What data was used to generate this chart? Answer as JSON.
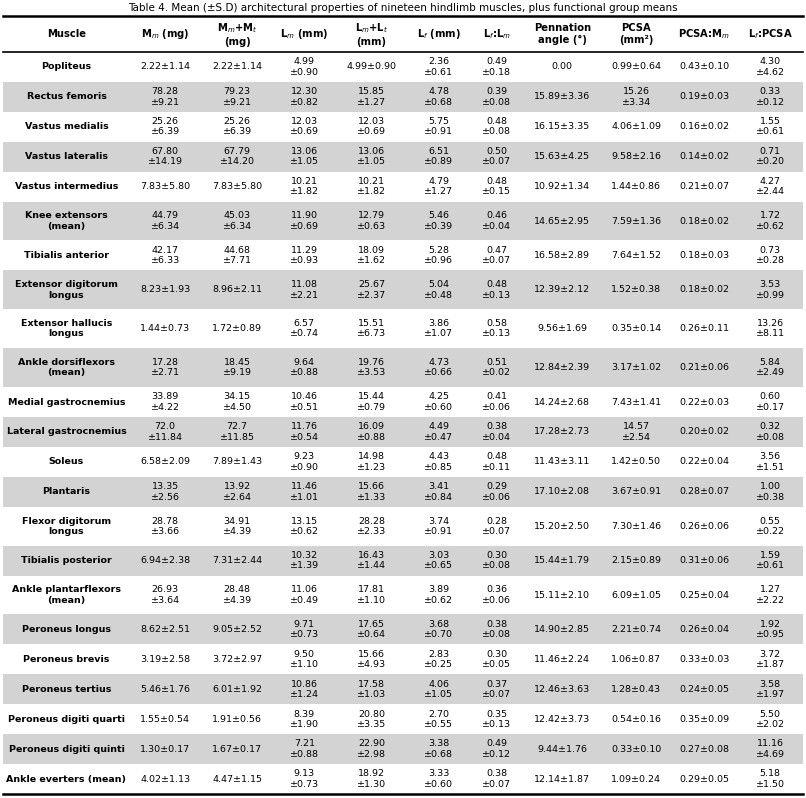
{
  "title": "Table 4. Mean (±S.D) architectural properties of nineteen hindlimb muscles, plus functional group means",
  "rows": [
    {
      "muscle": "Popliteus",
      "shaded": false,
      "group_mean": false,
      "cols": [
        "2.22±1.14",
        "2.22±1.14",
        "4.99\n±0.90",
        "4.99±0.90",
        "2.36\n±0.61",
        "0.49\n±0.18",
        "0.00",
        "0.99±0.64",
        "0.43±0.10",
        "4.30\n±4.62"
      ]
    },
    {
      "muscle": "Rectus femoris",
      "shaded": true,
      "group_mean": false,
      "cols": [
        "78.28\n±9.21",
        "79.23\n±9.21",
        "12.30\n±0.82",
        "15.85\n±1.27",
        "4.78\n±0.68",
        "0.39\n±0.08",
        "15.89±3.36",
        "15.26\n±3.34",
        "0.19±0.03",
        "0.33\n±0.12"
      ]
    },
    {
      "muscle": "Vastus medialis",
      "shaded": false,
      "group_mean": false,
      "cols": [
        "25.26\n±6.39",
        "25.26\n±6.39",
        "12.03\n±0.69",
        "12.03\n±0.69",
        "5.75\n±0.91",
        "0.48\n±0.08",
        "16.15±3.35",
        "4.06±1.09",
        "0.16±0.02",
        "1.55\n±0.61"
      ]
    },
    {
      "muscle": "Vastus lateralis",
      "shaded": true,
      "group_mean": false,
      "cols": [
        "67.80\n±14.19",
        "67.79\n±14.20",
        "13.06\n±1.05",
        "13.06\n±1.05",
        "6.51\n±0.89",
        "0.50\n±0.07",
        "15.63±4.25",
        "9.58±2.16",
        "0.14±0.02",
        "0.71\n±0.20"
      ]
    },
    {
      "muscle": "Vastus intermedius",
      "shaded": false,
      "group_mean": false,
      "cols": [
        "7.83±5.80",
        "7.83±5.80",
        "10.21\n±1.82",
        "10.21\n±1.82",
        "4.79\n±1.27",
        "0.48\n±0.15",
        "10.92±1.34",
        "1.44±0.86",
        "0.21±0.07",
        "4.27\n±2.44"
      ]
    },
    {
      "muscle": "Knee extensors\n(mean)",
      "shaded": true,
      "group_mean": true,
      "cols": [
        "44.79\n±6.34",
        "45.03\n±6.34",
        "11.90\n±0.69",
        "12.79\n±0.63",
        "5.46\n±0.39",
        "0.46\n±0.04",
        "14.65±2.95",
        "7.59±1.36",
        "0.18±0.02",
        "1.72\n±0.62"
      ]
    },
    {
      "muscle": "Tibialis anterior",
      "shaded": false,
      "group_mean": false,
      "cols": [
        "42.17\n±6.33",
        "44.68\n±7.71",
        "11.29\n±0.93",
        "18.09\n±1.62",
        "5.28\n±0.96",
        "0.47\n±0.07",
        "16.58±2.89",
        "7.64±1.52",
        "0.18±0.03",
        "0.73\n±0.28"
      ]
    },
    {
      "muscle": "Extensor digitorum\nlongus",
      "shaded": true,
      "group_mean": false,
      "cols": [
        "8.23±1.93",
        "8.96±2.11",
        "11.08\n±2.21",
        "25.67\n±2.37",
        "5.04\n±0.48",
        "0.48\n±0.13",
        "12.39±2.12",
        "1.52±0.38",
        "0.18±0.02",
        "3.53\n±0.99"
      ]
    },
    {
      "muscle": "Extensor hallucis\nlongus",
      "shaded": false,
      "group_mean": false,
      "cols": [
        "1.44±0.73",
        "1.72±0.89",
        "6.57\n±0.74",
        "15.51\n±6.73",
        "3.86\n±1.07",
        "0.58\n±0.13",
        "9.56±1.69",
        "0.35±0.14",
        "0.26±0.11",
        "13.26\n±8.11"
      ]
    },
    {
      "muscle": "Ankle dorsiflexors\n(mean)",
      "shaded": true,
      "group_mean": true,
      "cols": [
        "17.28\n±2.71",
        "18.45\n±9.19",
        "9.64\n±0.88",
        "19.76\n±3.53",
        "4.73\n±0.66",
        "0.51\n±0.02",
        "12.84±2.39",
        "3.17±1.02",
        "0.21±0.06",
        "5.84\n±2.49"
      ]
    },
    {
      "muscle": "Medial gastrocnemius",
      "shaded": false,
      "group_mean": false,
      "cols": [
        "33.89\n±4.22",
        "34.15\n±4.50",
        "10.46\n±0.51",
        "15.44\n±0.79",
        "4.25\n±0.60",
        "0.41\n±0.06",
        "14.24±2.68",
        "7.43±1.41",
        "0.22±0.03",
        "0.60\n±0.17"
      ]
    },
    {
      "muscle": "Lateral gastrocnemius",
      "shaded": true,
      "group_mean": false,
      "cols": [
        "72.0\n±11.84",
        "72.7\n±11.85",
        "11.76\n±0.54",
        "16.09\n±0.88",
        "4.49\n±0.47",
        "0.38\n±0.04",
        "17.28±2.73",
        "14.57\n±2.54",
        "0.20±0.02",
        "0.32\n±0.08"
      ]
    },
    {
      "muscle": "Soleus",
      "shaded": false,
      "group_mean": false,
      "cols": [
        "6.58±2.09",
        "7.89±1.43",
        "9.23\n±0.90",
        "14.98\n±1.23",
        "4.43\n±0.85",
        "0.48\n±0.11",
        "11.43±3.11",
        "1.42±0.50",
        "0.22±0.04",
        "3.56\n±1.51"
      ]
    },
    {
      "muscle": "Plantaris",
      "shaded": true,
      "group_mean": false,
      "cols": [
        "13.35\n±2.56",
        "13.92\n±2.64",
        "11.46\n±1.01",
        "15.66\n±1.33",
        "3.41\n±0.84",
        "0.29\n±0.06",
        "17.10±2.08",
        "3.67±0.91",
        "0.28±0.07",
        "1.00\n±0.38"
      ]
    },
    {
      "muscle": "Flexor digitorum\nlongus",
      "shaded": false,
      "group_mean": false,
      "cols": [
        "28.78\n±3.66",
        "34.91\n±4.39",
        "13.15\n±0.62",
        "28.28\n±2.33",
        "3.74\n±0.91",
        "0.28\n±0.07",
        "15.20±2.50",
        "7.30±1.46",
        "0.26±0.06",
        "0.55\n±0.22"
      ]
    },
    {
      "muscle": "Tibialis posterior",
      "shaded": true,
      "group_mean": false,
      "cols": [
        "6.94±2.38",
        "7.31±2.44",
        "10.32\n±1.39",
        "16.43\n±1.44",
        "3.03\n±0.65",
        "0.30\n±0.08",
        "15.44±1.79",
        "2.15±0.89",
        "0.31±0.06",
        "1.59\n±0.61"
      ]
    },
    {
      "muscle": "Ankle plantarflexors\n(mean)",
      "shaded": false,
      "group_mean": true,
      "cols": [
        "26.93\n±3.64",
        "28.48\n±4.39",
        "11.06\n±0.49",
        "17.81\n±1.10",
        "3.89\n±0.62",
        "0.36\n±0.06",
        "15.11±2.10",
        "6.09±1.05",
        "0.25±0.04",
        "1.27\n±2.22"
      ]
    },
    {
      "muscle": "Peroneus longus",
      "shaded": true,
      "group_mean": false,
      "cols": [
        "8.62±2.51",
        "9.05±2.52",
        "9.71\n±0.73",
        "17.65\n±0.64",
        "3.68\n±0.70",
        "0.38\n±0.08",
        "14.90±2.85",
        "2.21±0.74",
        "0.26±0.04",
        "1.92\n±0.95"
      ]
    },
    {
      "muscle": "Peroneus brevis",
      "shaded": false,
      "group_mean": false,
      "cols": [
        "3.19±2.58",
        "3.72±2.97",
        "9.50\n±1.10",
        "15.66\n±4.93",
        "2.83\n±0.25",
        "0.30\n±0.05",
        "11.46±2.24",
        "1.06±0.87",
        "0.33±0.03",
        "3.72\n±1.87"
      ]
    },
    {
      "muscle": "Peroneus tertius",
      "shaded": true,
      "group_mean": false,
      "cols": [
        "5.46±1.76",
        "6.01±1.92",
        "10.86\n±1.24",
        "17.58\n±1.03",
        "4.06\n±1.05",
        "0.37\n±0.07",
        "12.46±3.63",
        "1.28±0.43",
        "0.24±0.05",
        "3.58\n±1.97"
      ]
    },
    {
      "muscle": "Peroneus digiti quarti",
      "shaded": false,
      "group_mean": false,
      "cols": [
        "1.55±0.54",
        "1.91±0.56",
        "8.39\n±1.90",
        "20.80\n±3.35",
        "2.70\n±0.55",
        "0.35\n±0.13",
        "12.42±3.73",
        "0.54±0.16",
        "0.35±0.09",
        "5.50\n±2.02"
      ]
    },
    {
      "muscle": "Peroneus digiti quinti",
      "shaded": true,
      "group_mean": false,
      "cols": [
        "1.30±0.17",
        "1.67±0.17",
        "7.21\n±0.88",
        "22.90\n±2.98",
        "3.38\n±0.68",
        "0.49\n±0.12",
        "9.44±1.76",
        "0.33±0.10",
        "0.27±0.08",
        "11.16\n±4.69"
      ]
    },
    {
      "muscle": "Ankle everters (mean)",
      "shaded": false,
      "group_mean": true,
      "cols": [
        "4.02±1.13",
        "4.47±1.15",
        "9.13\n±0.73",
        "18.92\n±1.30",
        "3.33\n±0.60",
        "0.38\n±0.07",
        "12.14±1.87",
        "1.09±0.24",
        "0.29±0.05",
        "5.18\n±1.50"
      ]
    }
  ],
  "shaded_color": "#d3d3d3",
  "white_color": "#ffffff",
  "text_color": "#000000",
  "font_size": 6.8,
  "header_font_size": 7.2,
  "title_font_size": 7.5
}
